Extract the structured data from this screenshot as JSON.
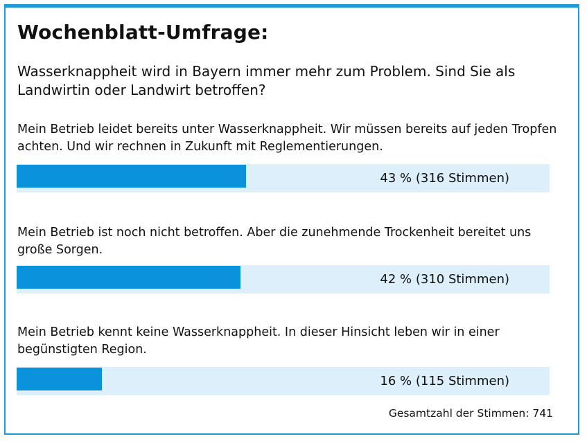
{
  "colors": {
    "accent": "#1e9ad9",
    "bar_fill": "#0a92dc",
    "bar_track": "#dceffb",
    "text": "#111111"
  },
  "chart_data": {
    "type": "bar",
    "orientation": "horizontal",
    "title": "Wochenblatt-Umfrage:",
    "subtitle": "Wasserknappheit wird in Bayern immer mehr zum Problem. Sind Sie als Landwirtin oder Landwirt betroffen?",
    "categories": [
      "Mein Betrieb leidet bereits unter Wasserknappheit. Wir müssen bereits auf jeden Tropfen achten. Und wir rechnen in Zukunft mit Reglementierungen.",
      "Mein Betrieb ist noch nicht betroffen. Aber die zunehmende Trockenheit bereitet uns große Sorgen.",
      "Mein Betrieb kennt keine Wasserknappheit. In dieser Hinsicht leben wir in einer begünstigten Region."
    ],
    "series": [
      {
        "values": [
          43,
          42,
          16
        ]
      }
    ],
    "votes": [
      316,
      310,
      115
    ],
    "data_labels": [
      "43 % (316 Stimmen)",
      "42 % (310 Stimmen)",
      "16 % (115 Stimmen)"
    ],
    "xlim": [
      0,
      100
    ],
    "unit": "%",
    "total_votes": 741,
    "total_label": "Gesamtzahl der Stimmen: 741",
    "grid": false,
    "legend": "none"
  }
}
